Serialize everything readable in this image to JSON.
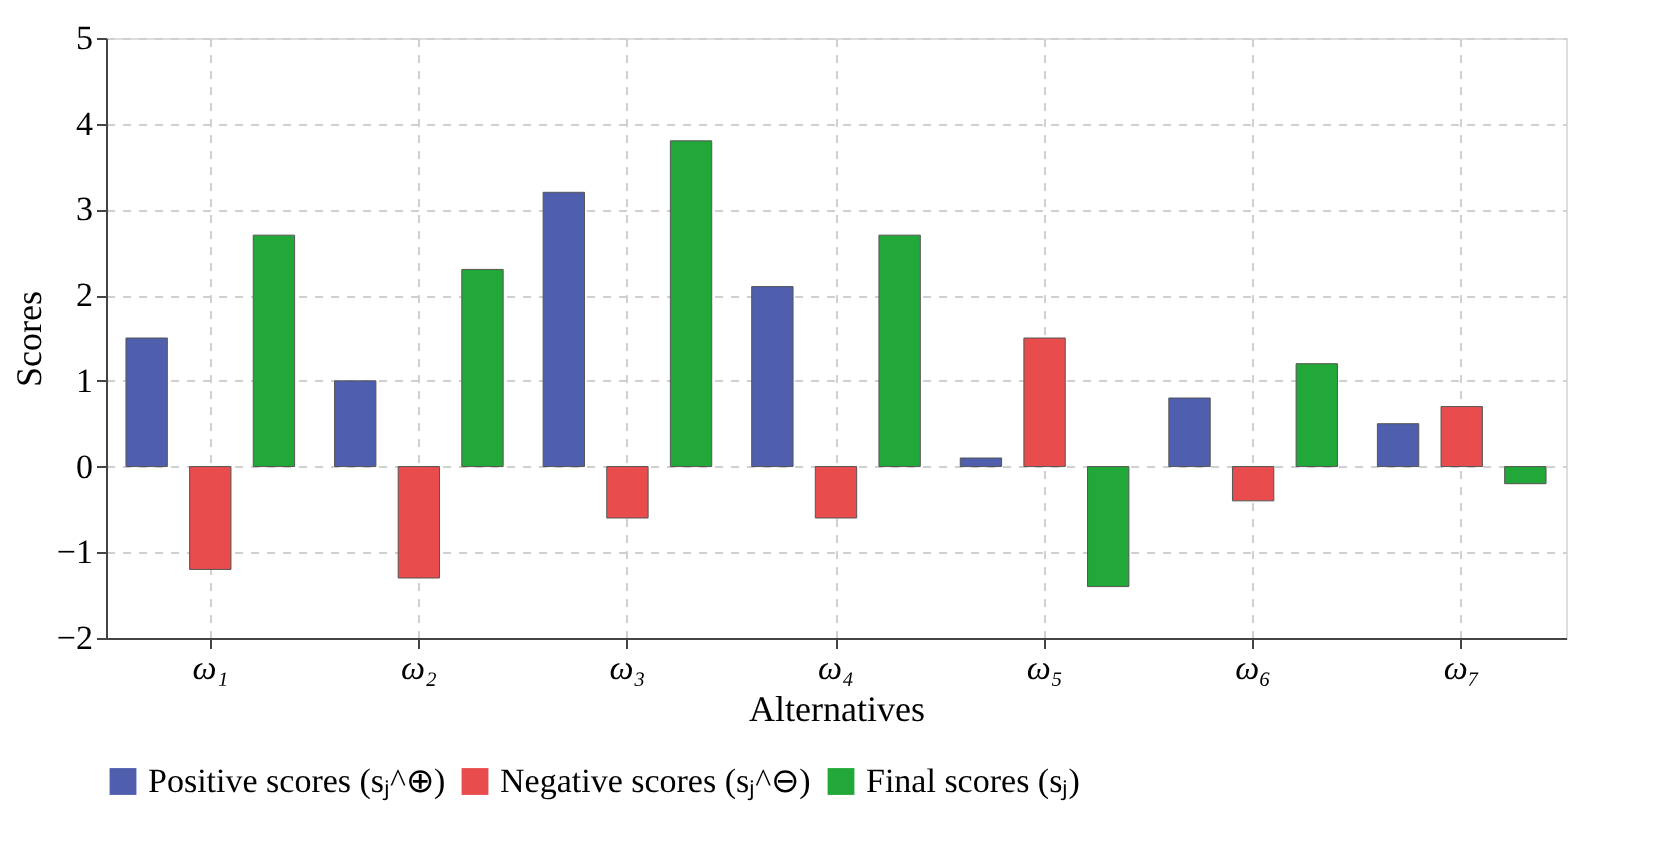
{
  "chart_data": {
    "type": "bar",
    "xlabel": "Alternatives",
    "ylabel": "Scores",
    "categories": [
      "ω₁",
      "ω₂",
      "ω₃",
      "ω₄",
      "ω₅",
      "ω₆",
      "ω₇"
    ],
    "series": [
      {
        "name": "Positive scores (sⱼ^⊕)",
        "color": "#4f5ead",
        "values": [
          1.5,
          1.0,
          3.2,
          2.1,
          0.1,
          0.8,
          0.5
        ]
      },
      {
        "name": "Negative scores (sⱼ^⊖)",
        "color": "#e84c4c",
        "values": [
          -1.2,
          -1.3,
          -0.6,
          -0.6,
          1.5,
          -0.4,
          0.7
        ]
      },
      {
        "name": "Final scores (sⱼ)",
        "color": "#22a838",
        "values": [
          2.7,
          2.3,
          3.8,
          2.7,
          -1.4,
          1.2,
          -0.2
        ]
      }
    ],
    "ylim": [
      -2,
      5
    ],
    "yticks": [
      -2,
      -1,
      0,
      1,
      2,
      3,
      4,
      5
    ],
    "grid": true,
    "legend": "bottom"
  }
}
